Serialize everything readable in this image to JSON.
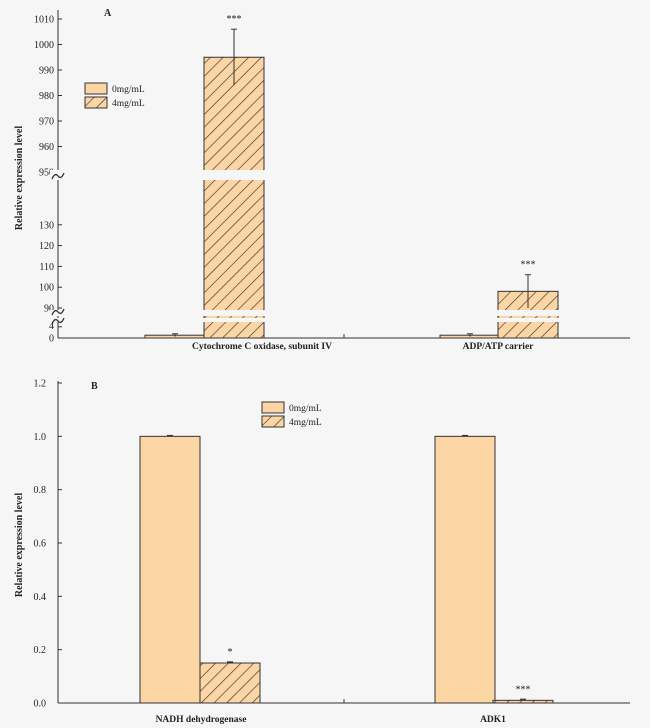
{
  "chart_data": [
    {
      "type": "bar",
      "panel_label": "A",
      "ylabel": "Relative expression level",
      "categories": [
        "Cytochrome C oxidase, subunit IV",
        "ADP/ATP carrier"
      ],
      "series": [
        {
          "name": "0mg/mL",
          "values": [
            1,
            1
          ],
          "errors": [
            0.5,
            0.5
          ]
        },
        {
          "name": "4mg/mL",
          "values": [
            995,
            98
          ],
          "errors": [
            11,
            8
          ]
        }
      ],
      "significance": [
        [
          "",
          "***"
        ],
        [
          "",
          "***"
        ]
      ],
      "y_axis_breaks": [
        [
          0,
          5
        ],
        [
          90,
          95
        ],
        [
          950,
          950
        ],
        [
          140,
          140
        ]
      ],
      "yticks": [
        "0",
        "4",
        "90",
        "100",
        "110",
        "120",
        "130",
        "950",
        "960",
        "970",
        "980",
        "990",
        "1000",
        "1010"
      ],
      "legend_position": "top-left",
      "colors": {
        "bar_fill": "#fcd5a5",
        "bar_stroke": "#333333",
        "hatch": "#333333"
      }
    },
    {
      "type": "bar",
      "panel_label": "B",
      "ylabel": "Relative expression level",
      "categories": [
        "NADH dehydrogenase",
        "ADK1"
      ],
      "series": [
        {
          "name": "0mg/mL",
          "values": [
            1.0,
            1.0
          ],
          "errors": [
            0.003,
            0.003
          ]
        },
        {
          "name": "4mg/mL",
          "values": [
            0.15,
            0.01
          ],
          "errors": [
            0.004,
            0.004
          ]
        }
      ],
      "significance": [
        [
          "",
          "*"
        ],
        [
          "",
          "***"
        ]
      ],
      "ylim": [
        0,
        1.2
      ],
      "yticks": [
        "0.0",
        "0.2",
        "0.4",
        "0.6",
        "0.8",
        "1.0",
        "1.2"
      ],
      "legend_position": "top-center",
      "colors": {
        "bar_fill": "#fcd5a5",
        "bar_stroke": "#333333",
        "hatch": "#333333"
      }
    }
  ]
}
